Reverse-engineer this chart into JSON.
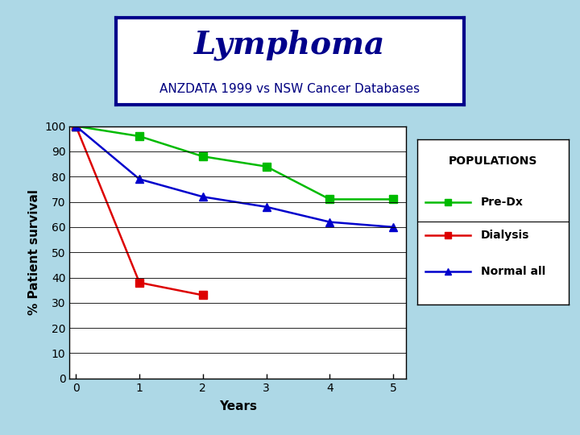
{
  "title": "Lymphoma",
  "subtitle": "ANZDATA 1999 vs NSW Cancer Databases",
  "xlabel": "Years",
  "ylabel": "% Patient survival",
  "background_outer": "#add8e6",
  "background_plot": "#ffffff",
  "title_box_bg": "white",
  "title_box_edge": "#00008b",
  "title_color": "#00008b",
  "subtitle_color": "#000080",
  "series": [
    {
      "label": "Pre-Dx",
      "color": "#00bb00",
      "marker": "s",
      "markersize": 7,
      "x": [
        0,
        1,
        2,
        3,
        4,
        5
      ],
      "y": [
        100,
        96,
        88,
        84,
        71,
        71
      ]
    },
    {
      "label": "Dialysis",
      "color": "#dd0000",
      "marker": "s",
      "markersize": 7,
      "x": [
        0,
        1,
        2
      ],
      "y": [
        100,
        38,
        33
      ]
    },
    {
      "label": "Normal all",
      "color": "#0000cc",
      "marker": "^",
      "markersize": 7,
      "x": [
        0,
        1,
        2,
        3,
        4,
        5
      ],
      "y": [
        100,
        79,
        72,
        68,
        62,
        60
      ]
    }
  ],
  "xlim": [
    -0.1,
    5.2
  ],
  "ylim": [
    0,
    100
  ],
  "yticks": [
    0,
    10,
    20,
    30,
    40,
    50,
    60,
    70,
    80,
    90,
    100
  ],
  "xticks": [
    0,
    1,
    2,
    3,
    4,
    5
  ],
  "legend_title": "POPULATIONS",
  "title_fontsize": 28,
  "subtitle_fontsize": 11,
  "axis_label_fontsize": 11,
  "tick_fontsize": 10,
  "legend_fontsize": 10,
  "legend_title_fontsize": 10
}
